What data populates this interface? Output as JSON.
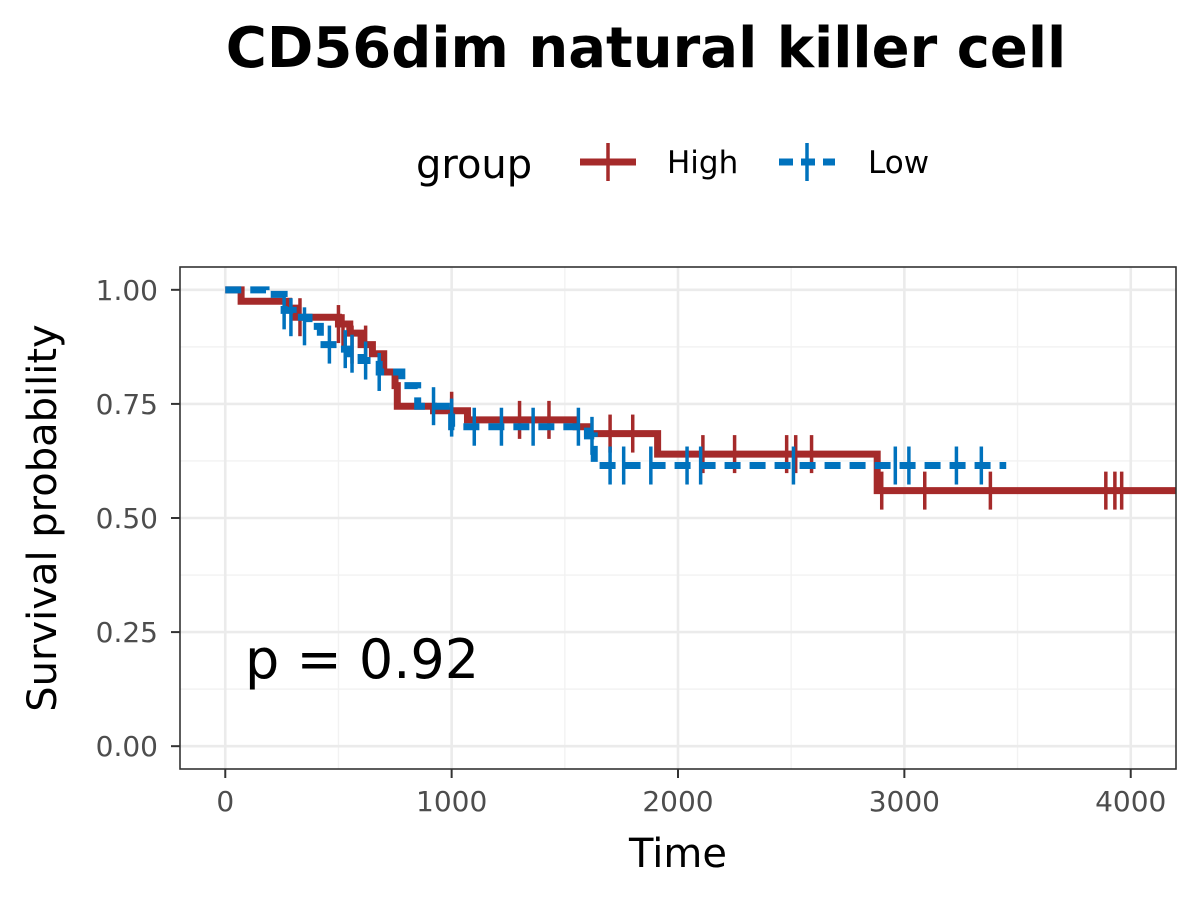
{
  "chart_data": {
    "type": "line",
    "subtype": "kaplan-meier",
    "title": "CD56dim natural killer cell",
    "xlabel": "Time",
    "ylabel": "Survival probability",
    "xlim": [
      -200,
      4200
    ],
    "ylim": [
      -0.05,
      1.05
    ],
    "x_ticks": [
      0,
      1000,
      2000,
      3000,
      4000
    ],
    "x_tick_labels": [
      "0",
      "1000",
      "2000",
      "3000",
      "4000"
    ],
    "y_ticks": [
      0.0,
      0.25,
      0.5,
      0.75,
      1.0
    ],
    "y_tick_labels": [
      "0.00",
      "0.25",
      "0.50",
      "0.75",
      "1.00"
    ],
    "grid": true,
    "legend": {
      "title": "group",
      "position": "top"
    },
    "annotation": "p = 0.92",
    "series": [
      {
        "name": "High",
        "color": "#A52A2A",
        "dash": "solid",
        "steps": [
          [
            0,
            1.0
          ],
          [
            70,
            0.975
          ],
          [
            280,
            0.96
          ],
          [
            310,
            0.94
          ],
          [
            500,
            0.925
          ],
          [
            550,
            0.905
          ],
          [
            600,
            0.88
          ],
          [
            650,
            0.86
          ],
          [
            700,
            0.82
          ],
          [
            750,
            0.79
          ],
          [
            760,
            0.745
          ],
          [
            920,
            0.735
          ],
          [
            1070,
            0.715
          ],
          [
            1550,
            0.7
          ],
          [
            1600,
            0.685
          ],
          [
            1910,
            0.64
          ],
          [
            2880,
            0.56
          ],
          [
            4200,
            0.56
          ]
        ],
        "censors": [
          [
            330,
            0.94
          ],
          [
            500,
            0.925
          ],
          [
            520,
            0.905
          ],
          [
            560,
            0.88
          ],
          [
            620,
            0.88
          ],
          [
            1000,
            0.735
          ],
          [
            1300,
            0.715
          ],
          [
            1430,
            0.715
          ],
          [
            1700,
            0.685
          ],
          [
            1800,
            0.685
          ],
          [
            2110,
            0.64
          ],
          [
            2250,
            0.64
          ],
          [
            2480,
            0.64
          ],
          [
            2520,
            0.64
          ],
          [
            2590,
            0.64
          ],
          [
            2900,
            0.56
          ],
          [
            3090,
            0.56
          ],
          [
            3380,
            0.56
          ],
          [
            3890,
            0.56
          ],
          [
            3930,
            0.56
          ],
          [
            3960,
            0.56
          ]
        ]
      },
      {
        "name": "Low",
        "color": "#0072BD",
        "dash": "dashed",
        "steps": [
          [
            0,
            1.0
          ],
          [
            180,
            0.99
          ],
          [
            260,
            0.955
          ],
          [
            300,
            0.94
          ],
          [
            370,
            0.92
          ],
          [
            420,
            0.88
          ],
          [
            500,
            0.87
          ],
          [
            550,
            0.86
          ],
          [
            600,
            0.845
          ],
          [
            680,
            0.82
          ],
          [
            780,
            0.79
          ],
          [
            850,
            0.745
          ],
          [
            1000,
            0.7
          ],
          [
            1600,
            0.68
          ],
          [
            1630,
            0.615
          ],
          [
            3450,
            0.615
          ]
        ],
        "censors": [
          [
            260,
            0.955
          ],
          [
            290,
            0.94
          ],
          [
            350,
            0.92
          ],
          [
            460,
            0.88
          ],
          [
            530,
            0.87
          ],
          [
            560,
            0.86
          ],
          [
            620,
            0.845
          ],
          [
            680,
            0.82
          ],
          [
            920,
            0.745
          ],
          [
            1000,
            0.72
          ],
          [
            1100,
            0.7
          ],
          [
            1220,
            0.7
          ],
          [
            1360,
            0.7
          ],
          [
            1560,
            0.7
          ],
          [
            1620,
            0.68
          ],
          [
            1700,
            0.615
          ],
          [
            1760,
            0.615
          ],
          [
            1880,
            0.615
          ],
          [
            2040,
            0.615
          ],
          [
            2100,
            0.615
          ],
          [
            2510,
            0.615
          ],
          [
            2960,
            0.615
          ],
          [
            3020,
            0.615
          ],
          [
            3230,
            0.615
          ],
          [
            3340,
            0.615
          ]
        ]
      }
    ]
  }
}
